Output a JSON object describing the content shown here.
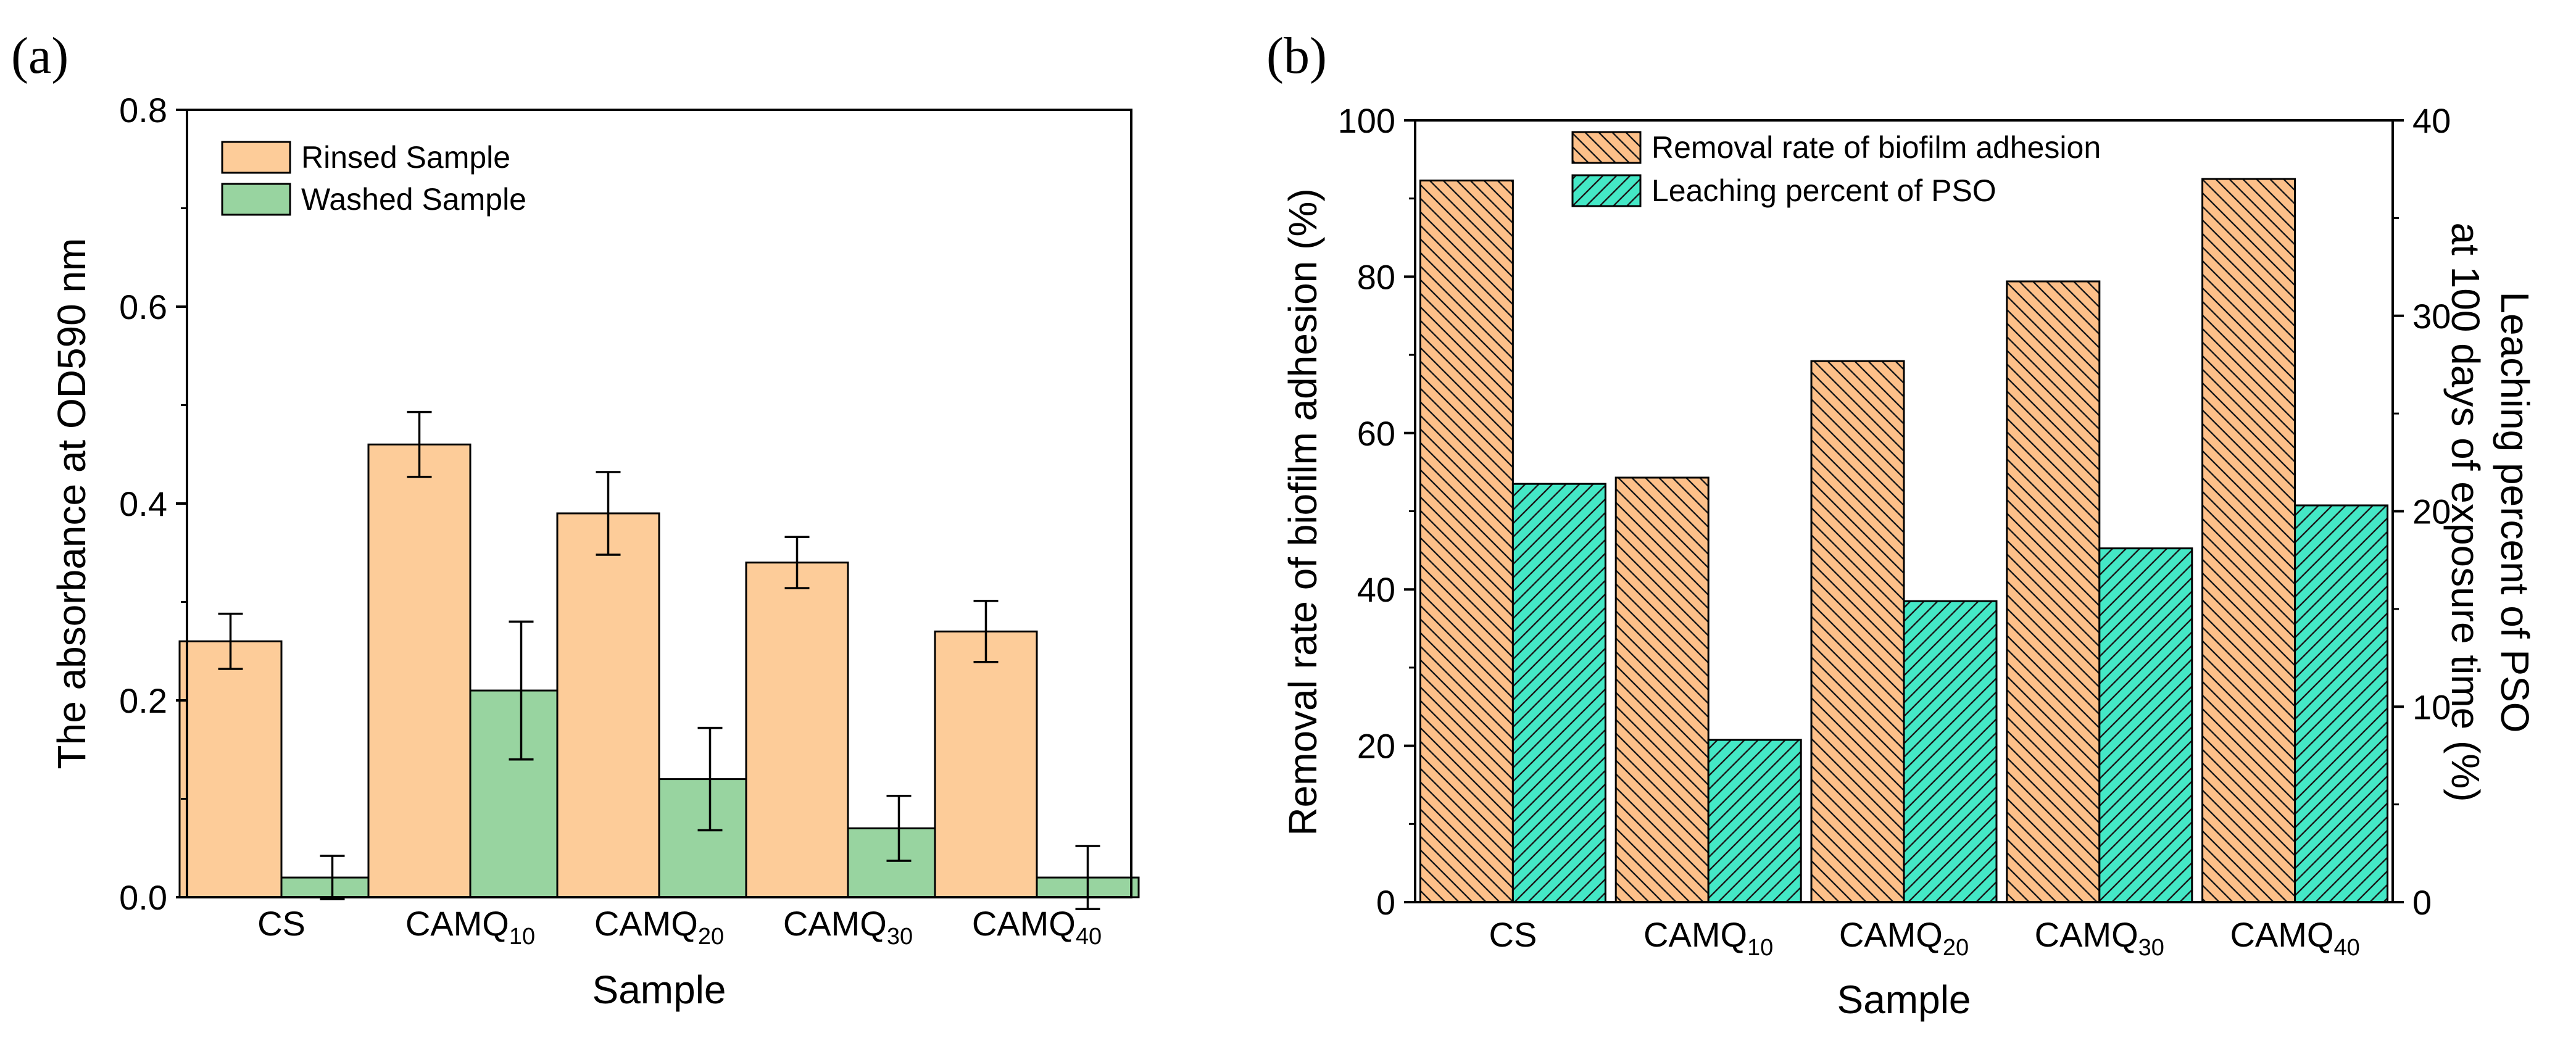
{
  "chart_data": [
    {
      "type": "bar",
      "panel_label": "(a)",
      "title": "",
      "xlabel": "Sample",
      "ylabel": "The absorbance at OD590 nm",
      "categories": [
        {
          "base": "CS",
          "sub": ""
        },
        {
          "base": "CAMQ",
          "sub": "10"
        },
        {
          "base": "CAMQ",
          "sub": "20"
        },
        {
          "base": "CAMQ",
          "sub": "30"
        },
        {
          "base": "CAMQ",
          "sub": "40"
        }
      ],
      "ylim": [
        0,
        0.8
      ],
      "yticks": [
        "0.0",
        "0.2",
        "0.4",
        "0.6",
        "0.8"
      ],
      "legend_position": "top-left",
      "series": [
        {
          "name": "Rinsed Sample",
          "color": "#fdcc99",
          "values": [
            0.26,
            0.46,
            0.39,
            0.34,
            0.27
          ],
          "errors": [
            0.028,
            0.033,
            0.042,
            0.026,
            0.031
          ]
        },
        {
          "name": "Washed Sample",
          "color": "#98d4a0",
          "values": [
            0.02,
            0.21,
            0.12,
            0.07,
            0.02
          ],
          "errors": [
            0.022,
            0.07,
            0.052,
            0.033,
            0.032
          ]
        }
      ]
    },
    {
      "type": "bar",
      "panel_label": "(b)",
      "title": "",
      "xlabel": "Sample",
      "ylabel": "Removal rate of biofilm adhesion (%)",
      "y2label_line1": "Leaching percent of PSO",
      "y2label_line2": "at 100 days of exposure time (%)",
      "categories": [
        {
          "base": "CS",
          "sub": ""
        },
        {
          "base": "CAMQ",
          "sub": "10"
        },
        {
          "base": "CAMQ",
          "sub": "20"
        },
        {
          "base": "CAMQ",
          "sub": "30"
        },
        {
          "base": "CAMQ",
          "sub": "40"
        }
      ],
      "ylim": [
        0,
        100
      ],
      "yticks": [
        "0",
        "20",
        "40",
        "60",
        "80",
        "100"
      ],
      "y2lim": [
        0,
        40
      ],
      "y2ticks": [
        "0",
        "10",
        "20",
        "30",
        "40"
      ],
      "legend_position": "top-center",
      "series": [
        {
          "name": "Removal rate of biofilm adhesion",
          "axis": "left",
          "color": "#fdc089",
          "values": [
            92.3,
            54.3,
            69.2,
            79.4,
            92.5
          ]
        },
        {
          "name": "Leaching percent of PSO",
          "axis": "right",
          "color": "#44e8c6",
          "values": [
            21.4,
            8.3,
            15.4,
            18.1,
            20.3
          ]
        }
      ]
    }
  ]
}
